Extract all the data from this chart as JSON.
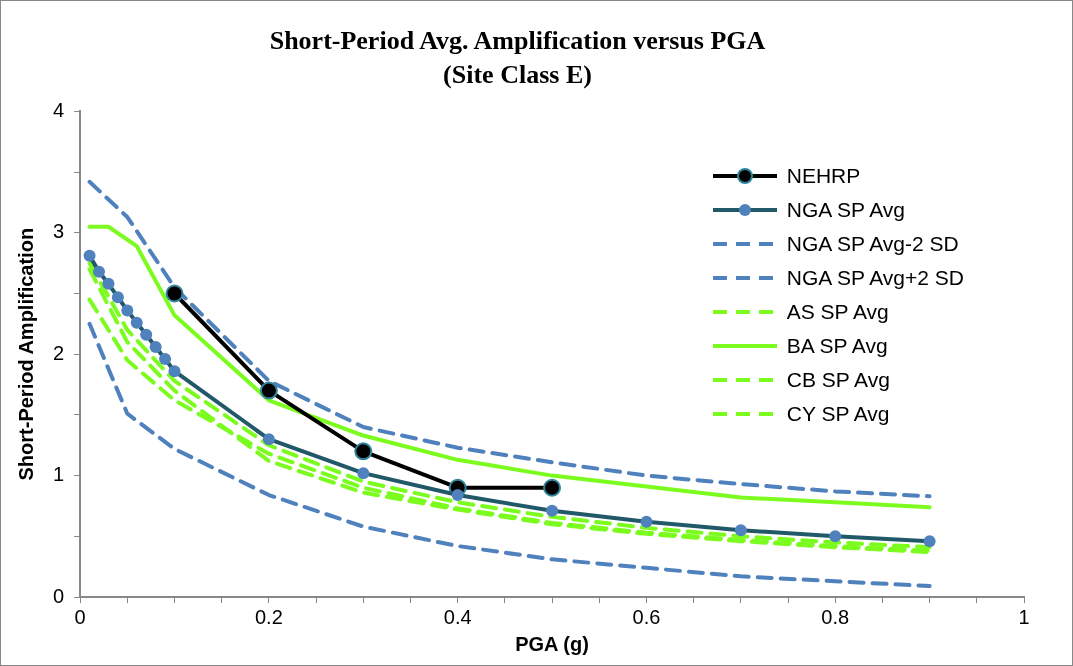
{
  "chart_data": {
    "type": "line",
    "title": "Short-Period Avg. Amplification versus PGA",
    "subtitle": "(Site Class E)",
    "xlabel": "PGA (g)",
    "ylabel": "Short-Period Amplification",
    "x": [
      0.01,
      0.05,
      0.1,
      0.2,
      0.3,
      0.4,
      0.5,
      0.6,
      0.7,
      0.8,
      0.9
    ],
    "series": [
      {
        "name": "NEHRP",
        "color": "#000000",
        "marker": "circle",
        "line_style": "solid",
        "x": [
          0.1,
          0.2,
          0.3,
          0.4,
          0.5
        ],
        "values": [
          2.5,
          1.7,
          1.2,
          0.9,
          0.9
        ]
      },
      {
        "name": "NGA SP Avg",
        "color": "#215968",
        "marker": "circle",
        "line_style": "solid",
        "x": [
          0.01,
          0.02,
          0.03,
          0.04,
          0.05,
          0.06,
          0.07,
          0.08,
          0.09,
          0.1,
          0.2,
          0.3,
          0.4,
          0.5,
          0.6,
          0.7,
          0.8,
          0.9
        ],
        "values": [
          2.81,
          2.68,
          2.58,
          2.47,
          2.36,
          2.26,
          2.16,
          2.06,
          1.96,
          1.86,
          1.3,
          1.02,
          0.84,
          0.71,
          0.62,
          0.55,
          0.5,
          0.46
        ]
      },
      {
        "name": "NGA SP Avg-2 SD",
        "color": "#4f81bd",
        "marker": "none",
        "line_style": "dashed",
        "values": [
          2.25,
          1.51,
          1.22,
          0.84,
          0.58,
          0.42,
          0.31,
          0.24,
          0.17,
          0.13,
          0.09
        ]
      },
      {
        "name": "NGA SP Avg+2 SD",
        "color": "#4f81bd",
        "marker": "none",
        "line_style": "dashed",
        "values": [
          3.42,
          3.13,
          2.55,
          1.78,
          1.4,
          1.23,
          1.11,
          1.0,
          0.93,
          0.87,
          0.83
        ]
      },
      {
        "name": "AS SP Avg",
        "color": "#7cfc1e",
        "marker": "none",
        "line_style": "dashed",
        "values": [
          2.75,
          2.2,
          1.78,
          1.25,
          0.95,
          0.78,
          0.66,
          0.57,
          0.5,
          0.45,
          0.41
        ]
      },
      {
        "name": "BA SP Avg",
        "color": "#7cfc1e",
        "marker": "none",
        "line_style": "solid",
        "x": [
          0.01,
          0.03,
          0.06,
          0.1,
          0.2,
          0.3,
          0.4,
          0.5,
          0.6,
          0.7,
          0.8,
          0.9
        ],
        "values": [
          3.05,
          3.05,
          2.89,
          2.32,
          1.62,
          1.33,
          1.13,
          1.0,
          0.91,
          0.82,
          0.78,
          0.74
        ]
      },
      {
        "name": "CB SP Avg",
        "color": "#7cfc1e",
        "marker": "none",
        "line_style": "dashed",
        "values": [
          2.45,
          1.95,
          1.62,
          1.18,
          0.9,
          0.73,
          0.61,
          0.53,
          0.47,
          0.42,
          0.38
        ]
      },
      {
        "name": "CY SP Avg",
        "color": "#7cfc1e",
        "marker": "none",
        "line_style": "dashed",
        "values": [
          2.7,
          2.1,
          1.7,
          1.12,
          0.86,
          0.72,
          0.6,
          0.52,
          0.46,
          0.41,
          0.37
        ]
      }
    ],
    "xlim": [
      0,
      1
    ],
    "xticks": [
      0,
      {
        "value": 0.05,
        "label": null
      },
      0.2,
      {
        "value": 0.1,
        "label": null
      },
      {
        "value": 0.15,
        "label": null
      },
      {
        "value": 0.25,
        "label": null
      },
      {
        "value": 0.3,
        "label": null
      },
      {
        "value": 0.35,
        "label": null
      },
      0.4,
      {
        "value": 0.45,
        "label": null
      },
      {
        "value": 0.5,
        "label": null
      },
      {
        "value": 0.55,
        "label": null
      },
      0.6,
      {
        "value": 0.65,
        "label": null
      },
      {
        "value": 0.7,
        "label": null
      },
      {
        "value": 0.75,
        "label": null
      },
      0.8,
      {
        "value": 0.85,
        "label": null
      },
      {
        "value": 0.9,
        "label": null
      },
      {
        "value": 0.95,
        "label": null
      },
      1
    ],
    "ylim": [
      0,
      4
    ],
    "yticks": [
      0,
      {
        "value": 0.5,
        "label": null
      },
      1,
      {
        "value": 1.5,
        "label": null
      },
      2,
      {
        "value": 2.5,
        "label": null
      },
      3,
      {
        "value": 3.5,
        "label": null
      },
      4
    ],
    "grid": false,
    "legend": "top right"
  }
}
